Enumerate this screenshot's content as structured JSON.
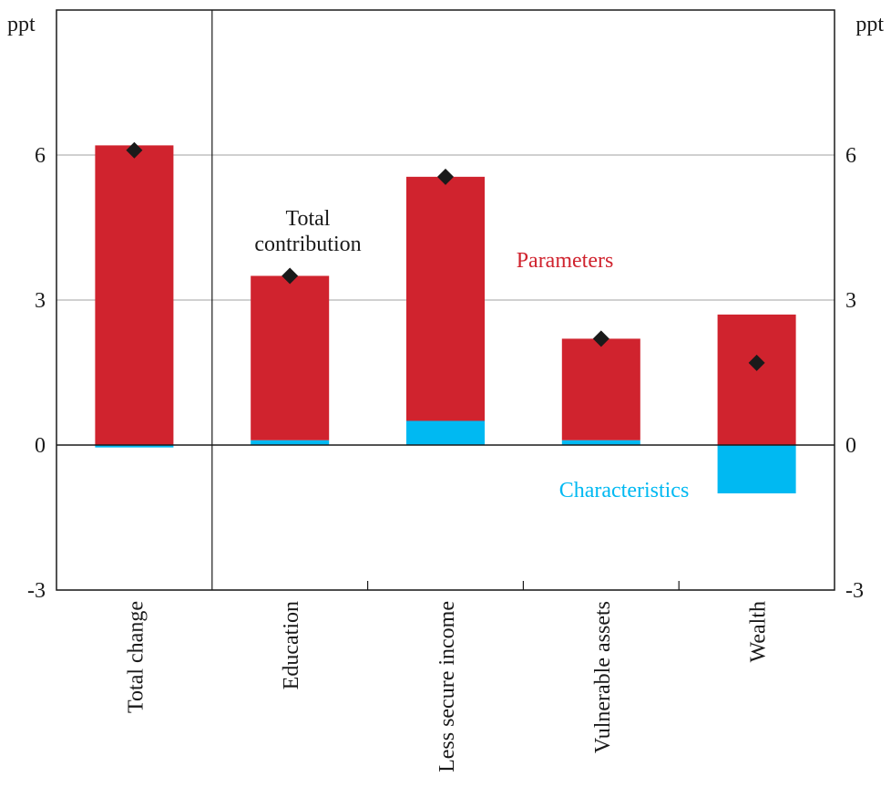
{
  "chart_data": {
    "type": "stacked_bar",
    "categories": [
      "Total change",
      "Education",
      "Less secure income",
      "Vulnerable assets",
      "Wealth"
    ],
    "series": [
      {
        "name": "Characteristics",
        "color": "#00b9f2",
        "values": [
          -0.05,
          0.1,
          0.5,
          0.1,
          -1.0
        ]
      },
      {
        "name": "Parameters",
        "color": "#d0232e",
        "values": [
          6.2,
          3.4,
          5.05,
          2.1,
          2.7
        ]
      },
      {
        "name": "Total contribution",
        "color": "#1a1a1a",
        "marker": "diamond",
        "values": [
          6.1,
          3.5,
          5.55,
          2.2,
          1.7
        ]
      }
    ],
    "y_unit": "ppt",
    "y2_unit": "ppt",
    "ylim": [
      -3,
      9
    ],
    "yticks": [
      -3,
      0,
      3,
      6
    ],
    "y2lim": [
      -3,
      9
    ],
    "y2ticks": [
      -3,
      0,
      3,
      6
    ],
    "grid": true
  }
}
